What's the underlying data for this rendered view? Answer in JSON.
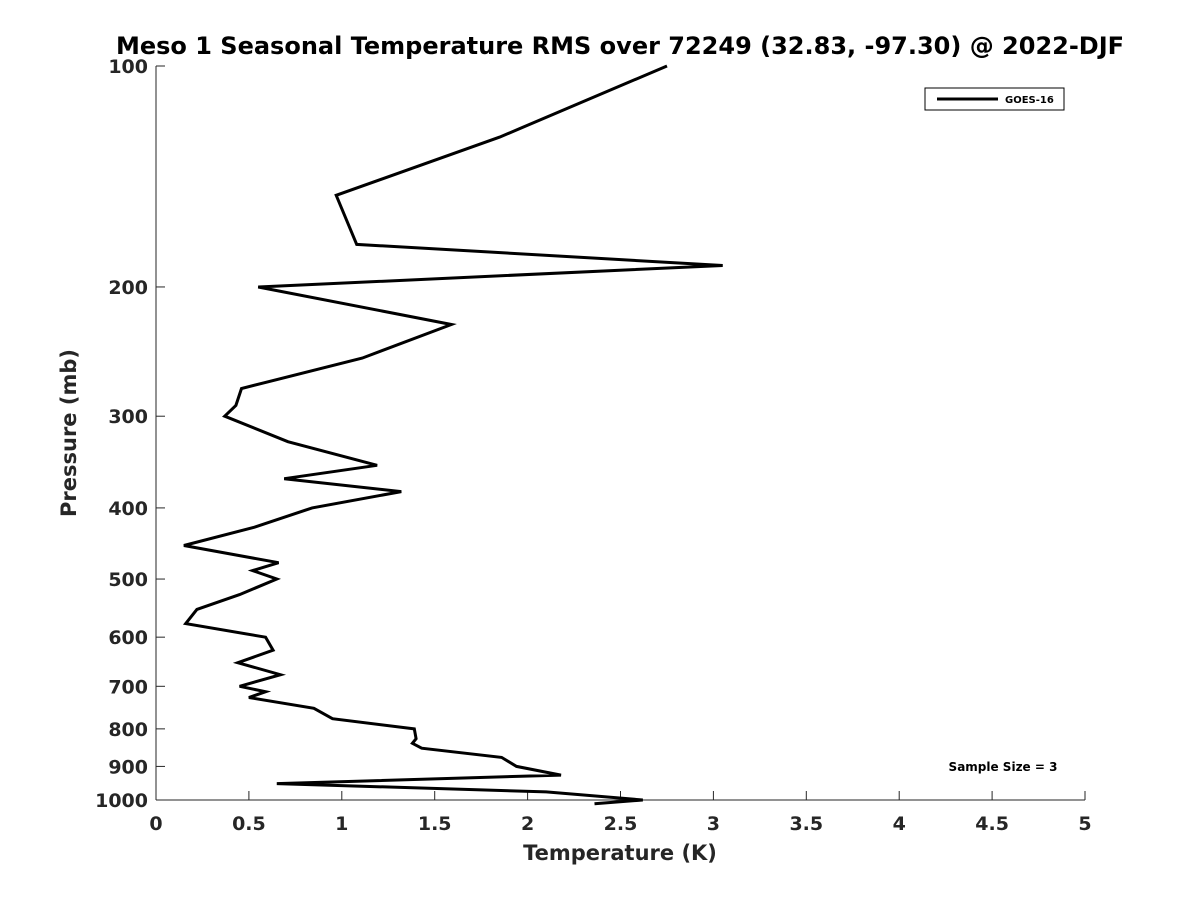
{
  "chart_data": {
    "type": "line",
    "title": "Meso 1 Seasonal Temperature RMS over 72249 (32.83, -97.30) @ 2022-DJF",
    "xlabel": "Temperature (K)",
    "ylabel": "Pressure (mb)",
    "xlim": [
      0,
      5
    ],
    "ylim": [
      100,
      1000
    ],
    "y_scale": "log",
    "y_reversed": true,
    "x_ticks": [
      "0",
      "0.5",
      "1",
      "1.5",
      "2",
      "2.5",
      "3",
      "3.5",
      "4",
      "4.5",
      "5"
    ],
    "y_ticks": [
      "100",
      "200",
      "300",
      "400",
      "500",
      "600",
      "700",
      "800",
      "900",
      "1000"
    ],
    "grid": false,
    "legend_position": "top-right",
    "annotation": "Sample Size = 3",
    "series": [
      {
        "name": "GOES-16",
        "color": "#000000",
        "points": [
          [
            2.75,
            100
          ],
          [
            1.85,
            125
          ],
          [
            0.97,
            150
          ],
          [
            1.08,
            175
          ],
          [
            3.05,
            187
          ],
          [
            0.55,
            200
          ],
          [
            1.59,
            225
          ],
          [
            1.11,
            250
          ],
          [
            0.46,
            275
          ],
          [
            0.43,
            290
          ],
          [
            0.37,
            300
          ],
          [
            0.71,
            325
          ],
          [
            1.19,
            350
          ],
          [
            0.69,
            365
          ],
          [
            1.32,
            380
          ],
          [
            0.84,
            400
          ],
          [
            0.53,
            425
          ],
          [
            0.15,
            450
          ],
          [
            0.66,
            475
          ],
          [
            0.52,
            487
          ],
          [
            0.65,
            500
          ],
          [
            0.45,
            525
          ],
          [
            0.22,
            550
          ],
          [
            0.16,
            575
          ],
          [
            0.59,
            600
          ],
          [
            0.63,
            625
          ],
          [
            0.44,
            650
          ],
          [
            0.67,
            675
          ],
          [
            0.45,
            700
          ],
          [
            0.59,
            712
          ],
          [
            0.5,
            725
          ],
          [
            0.85,
            750
          ],
          [
            0.95,
            775
          ],
          [
            1.39,
            800
          ],
          [
            1.4,
            825
          ],
          [
            1.38,
            837
          ],
          [
            1.43,
            850
          ],
          [
            1.86,
            875
          ],
          [
            1.94,
            900
          ],
          [
            2.18,
            925
          ],
          [
            0.65,
            950
          ],
          [
            2.1,
            975
          ],
          [
            2.62,
            1000
          ],
          [
            2.36,
            1012
          ]
        ]
      }
    ]
  }
}
